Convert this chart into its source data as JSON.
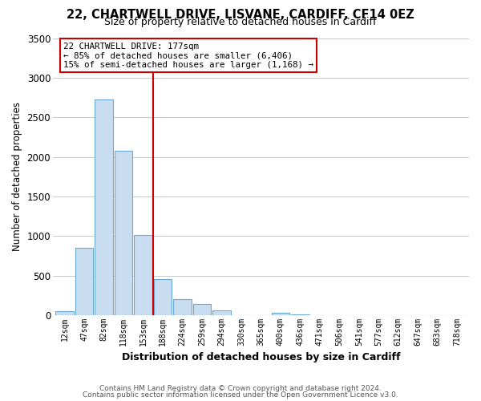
{
  "title": "22, CHARTWELL DRIVE, LISVANE, CARDIFF, CF14 0EZ",
  "subtitle": "Size of property relative to detached houses in Cardiff",
  "xlabel": "Distribution of detached houses by size in Cardiff",
  "ylabel": "Number of detached properties",
  "bar_color": "#c9ddf0",
  "bar_edge_color": "#6aaad4",
  "background_color": "#ffffff",
  "grid_color": "#c8c8c8",
  "annotation_box_color": "#ffffff",
  "annotation_box_edge": "#cc0000",
  "vline_color": "#cc0000",
  "tick_labels": [
    "12sqm",
    "47sqm",
    "82sqm",
    "118sqm",
    "153sqm",
    "188sqm",
    "224sqm",
    "259sqm",
    "294sqm",
    "330sqm",
    "365sqm",
    "400sqm",
    "436sqm",
    "471sqm",
    "506sqm",
    "541sqm",
    "577sqm",
    "612sqm",
    "647sqm",
    "683sqm",
    "718sqm"
  ],
  "bar_heights": [
    55,
    855,
    2730,
    2080,
    1010,
    455,
    205,
    140,
    60,
    0,
    0,
    30,
    10,
    0,
    0,
    0,
    0,
    0,
    0,
    0,
    0
  ],
  "ylim": [
    0,
    3500
  ],
  "yticks": [
    0,
    500,
    1000,
    1500,
    2000,
    2500,
    3000,
    3500
  ],
  "vline_index": 5,
  "annotation_line1": "22 CHARTWELL DRIVE: 177sqm",
  "annotation_line2": "← 85% of detached houses are smaller (6,406)",
  "annotation_line3": "15% of semi-detached houses are larger (1,168) →",
  "footnote1": "Contains HM Land Registry data © Crown copyright and database right 2024.",
  "footnote2": "Contains public sector information licensed under the Open Government Licence v3.0."
}
